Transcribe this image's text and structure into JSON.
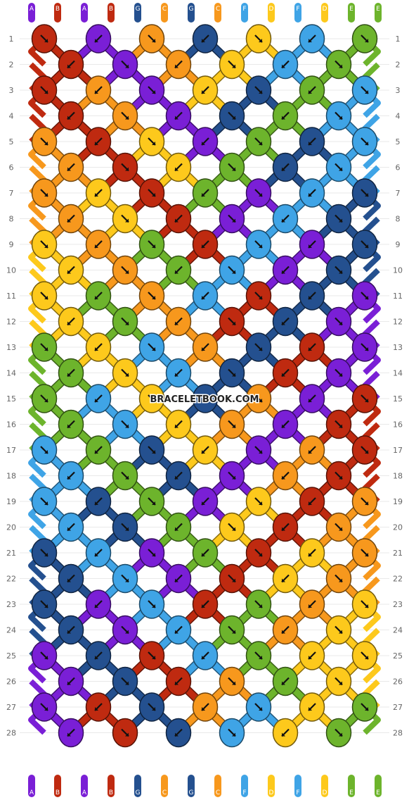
{
  "colors": {
    "A": "#7a1fd6",
    "B": "#bf2a10",
    "G": "#24508f",
    "C": "#f7981d",
    "F": "#3fa4e6",
    "D": "#fdc91c",
    "E": "#6db42c"
  },
  "watermark": "BRACELETBOOK.COM",
  "strands": [
    "A",
    "B",
    "A",
    "B",
    "G",
    "C",
    "G",
    "C",
    "F",
    "D",
    "F",
    "D",
    "E",
    "E"
  ],
  "row_labels": [
    "1",
    "2",
    "3",
    "4",
    "5",
    "6",
    "7",
    "8",
    "9",
    "10",
    "11",
    "12",
    "13",
    "14",
    "15",
    "16",
    "17",
    "18",
    "19",
    "20",
    "21",
    "22",
    "23",
    "24",
    "25",
    "26",
    "27",
    "28"
  ],
  "knot_rows": [
    [
      "B",
      "A",
      "C",
      "G",
      "D",
      "F",
      "E"
    ],
    [
      "B",
      "A",
      "C",
      "D",
      "F",
      "E"
    ],
    [
      "B",
      "C",
      "A",
      "D",
      "G",
      "E",
      "F"
    ],
    [
      "B",
      "C",
      "A",
      "G",
      "E",
      "F"
    ],
    [
      "C",
      "B",
      "D",
      "A",
      "E",
      "G",
      "F"
    ],
    [
      "C",
      "B",
      "D",
      "E",
      "G",
      "F"
    ],
    [
      "C",
      "D",
      "B",
      "E",
      "A",
      "F",
      "G"
    ],
    [
      "C",
      "D",
      "B",
      "A",
      "F",
      "G"
    ],
    [
      "D",
      "C",
      "E",
      "B",
      "F",
      "A",
      "G"
    ],
    [
      "D",
      "C",
      "E",
      "F",
      "A",
      "G"
    ],
    [
      "D",
      "E",
      "C",
      "F",
      "B",
      "G",
      "A"
    ],
    [
      "D",
      "E",
      "C",
      "B",
      "G",
      "A"
    ],
    [
      "E",
      "D",
      "F",
      "C",
      "G",
      "B",
      "A"
    ],
    [
      "E",
      "D",
      "F",
      "G",
      "B",
      "A"
    ],
    [
      "E",
      "F",
      "D",
      "G",
      "C",
      "A",
      "B"
    ],
    [
      "E",
      "F",
      "D",
      "C",
      "A",
      "B"
    ],
    [
      "F",
      "E",
      "G",
      "D",
      "A",
      "C",
      "B"
    ],
    [
      "F",
      "E",
      "G",
      "A",
      "C",
      "B"
    ],
    [
      "F",
      "G",
      "E",
      "A",
      "D",
      "B",
      "C"
    ],
    [
      "F",
      "G",
      "E",
      "D",
      "B",
      "C"
    ],
    [
      "G",
      "F",
      "A",
      "E",
      "B",
      "D",
      "C"
    ],
    [
      "G",
      "F",
      "A",
      "B",
      "D",
      "C"
    ],
    [
      "G",
      "A",
      "F",
      "B",
      "E",
      "C",
      "D"
    ],
    [
      "G",
      "A",
      "F",
      "E",
      "C",
      "D"
    ],
    [
      "A",
      "G",
      "B",
      "F",
      "E",
      "D",
      "D"
    ],
    [
      "A",
      "G",
      "B",
      "C",
      "E",
      "D"
    ],
    [
      "A",
      "B",
      "G",
      "C",
      "F",
      "D",
      "E"
    ],
    [
      "A",
      "B",
      "G",
      "F",
      "D",
      "E"
    ]
  ]
}
